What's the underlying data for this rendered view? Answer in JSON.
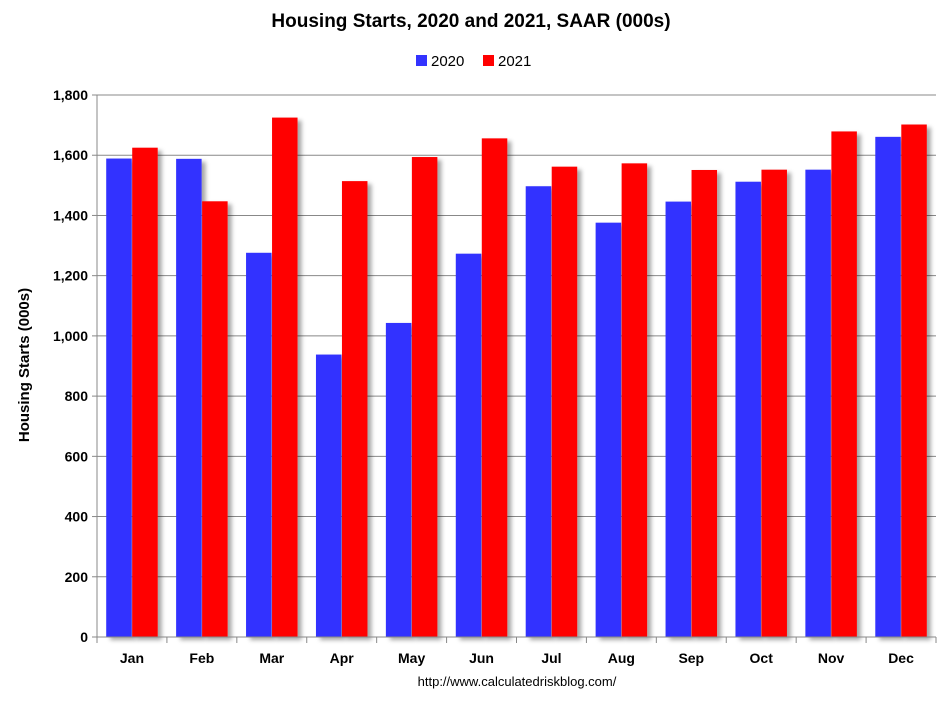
{
  "chart_data": {
    "type": "bar",
    "title": "Housing Starts,  2020 and 2021, SAAR (000s)",
    "ylabel": "Housing Starts (000s)",
    "xlabel": "",
    "categories": [
      "Jan",
      "Feb",
      "Mar",
      "Apr",
      "May",
      "Jun",
      "Jul",
      "Aug",
      "Sep",
      "Oct",
      "Nov",
      "Dec"
    ],
    "series": [
      {
        "name": "2020",
        "color": "#3333ff",
        "values": [
          1589,
          1588,
          1276,
          938,
          1043,
          1273,
          1497,
          1376,
          1446,
          1512,
          1552,
          1661
        ]
      },
      {
        "name": "2021",
        "color": "#ff0000",
        "values": [
          1625,
          1447,
          1725,
          1514,
          1594,
          1656,
          1562,
          1573,
          1551,
          1552,
          1679,
          1702
        ]
      }
    ],
    "ylim": [
      0,
      1800
    ],
    "yticks": [
      0,
      200,
      400,
      600,
      800,
      1000,
      1200,
      1400,
      1600,
      1800
    ],
    "ytick_labels": [
      "0",
      "200",
      "400",
      "600",
      "800",
      "1,000",
      "1,200",
      "1,400",
      "1,600",
      "1,800"
    ],
    "grid": true,
    "legend_position": "top-center",
    "source": "http://www.calculatedriskblog.com/"
  }
}
